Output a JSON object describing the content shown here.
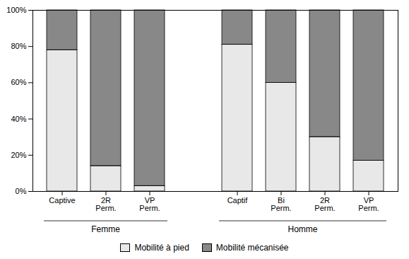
{
  "chart_data": {
    "type": "bar",
    "stacked": true,
    "groups": [
      {
        "name": "Femme",
        "categories": [
          "Captive",
          "2R\nPerm.",
          "VP\nPerm."
        ]
      },
      {
        "name": "Homme",
        "categories": [
          "Captif",
          "Bi\nPerm.",
          "2R\nPerm.",
          "VP\nPerm."
        ]
      }
    ],
    "series": [
      {
        "name": "Mobilité à pied",
        "color": "#e8e8e8",
        "values": [
          78,
          14,
          3,
          81,
          60,
          30,
          17
        ]
      },
      {
        "name": "Mobilité mécanisée",
        "color": "#888888",
        "values": [
          22,
          86,
          97,
          19,
          40,
          70,
          83
        ]
      }
    ],
    "ylim": [
      0,
      100
    ],
    "yticks": [
      {
        "value": 0,
        "label": "0%"
      },
      {
        "value": 20,
        "label": "20%"
      },
      {
        "value": 40,
        "label": "40%"
      },
      {
        "value": 60,
        "label": "60%"
      },
      {
        "value": 80,
        "label": "80%"
      },
      {
        "value": 100,
        "label": "100%"
      }
    ],
    "legend": "bottom"
  }
}
